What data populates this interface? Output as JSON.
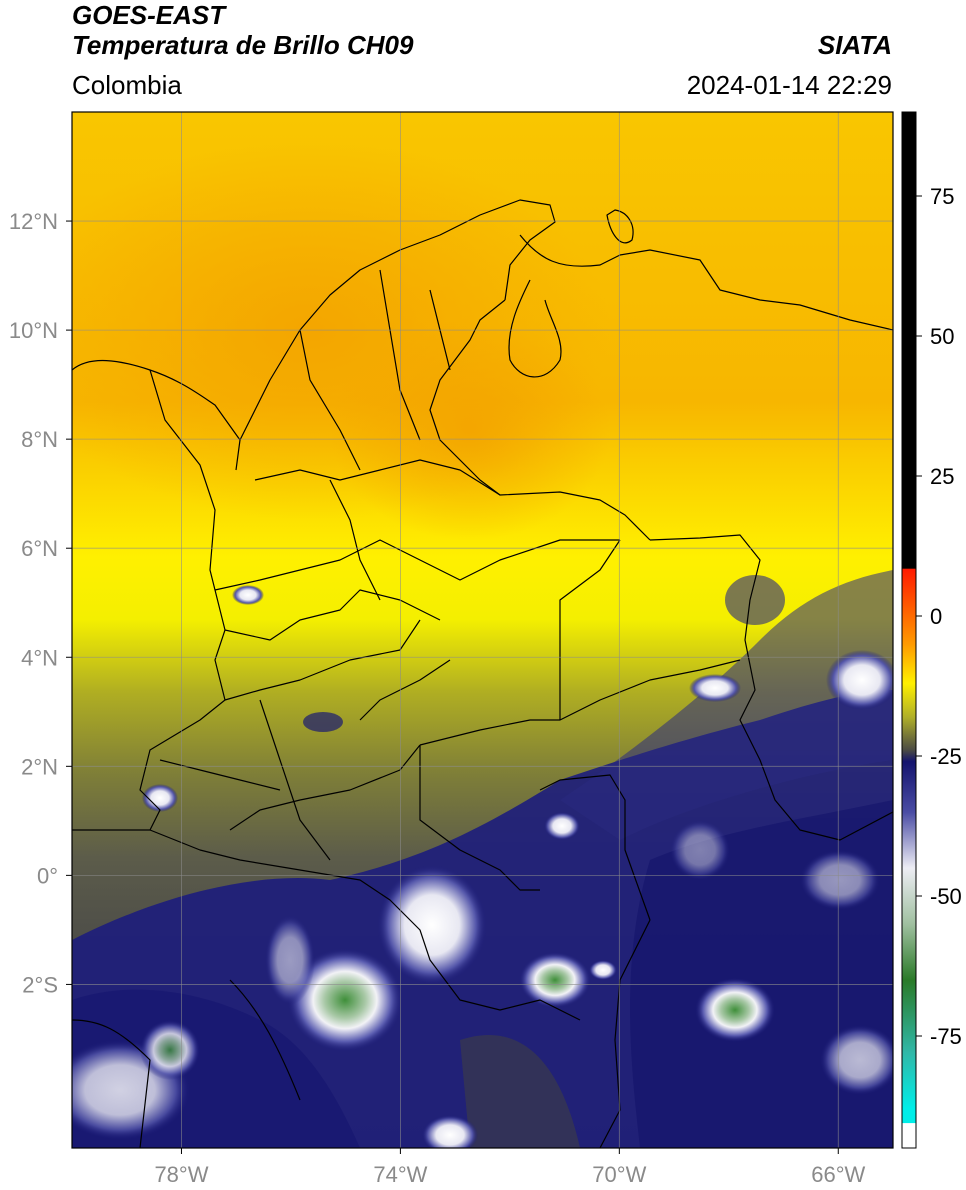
{
  "header": {
    "satellite": "GOES-EAST",
    "product": "Temperatura de Brillo CH09",
    "agency": "SIATA",
    "region": "Colombia",
    "timestamp": "2024-01-14 22:29"
  },
  "map": {
    "lon_range": [
      -80,
      -65
    ],
    "lat_range": [
      -5,
      14
    ],
    "lon_ticks": [
      {
        "value": -78,
        "label": "78°W"
      },
      {
        "value": -74,
        "label": "74°W"
      },
      {
        "value": -70,
        "label": "70°W"
      },
      {
        "value": -66,
        "label": "66°W"
      }
    ],
    "lat_ticks": [
      {
        "value": 12,
        "label": "12°N"
      },
      {
        "value": 10,
        "label": "10°N"
      },
      {
        "value": 8,
        "label": "8°N"
      },
      {
        "value": 6,
        "label": "6°N"
      },
      {
        "value": 4,
        "label": "4°N"
      },
      {
        "value": 2,
        "label": "2°N"
      },
      {
        "value": 0,
        "label": "0°"
      },
      {
        "value": -2,
        "label": "2°S"
      }
    ],
    "grid": true,
    "colors": {
      "warm_orange": "#f9b800",
      "yellow": "#fff200",
      "olive": "#9a9a28",
      "dark_gray": "#4e4e4a",
      "navy": "#1a1a78",
      "white_cloud": "#f2f2f6",
      "green_core": "#3f8f3a"
    }
  },
  "colorbar": {
    "range": [
      -95,
      90
    ],
    "ticks": [
      75,
      50,
      25,
      0,
      -25,
      -50,
      -75
    ],
    "tick_labels": [
      "75",
      "50",
      "25",
      "0",
      "-25",
      "-50",
      "-75"
    ],
    "stops": [
      {
        "value": 90,
        "color": "#000000"
      },
      {
        "value": 8.5,
        "color": "#000000"
      },
      {
        "value": 8.4,
        "color": "#ff1a00"
      },
      {
        "value": -5,
        "color": "#ff9a00"
      },
      {
        "value": -12,
        "color": "#fff000"
      },
      {
        "value": -18,
        "color": "#b0b028"
      },
      {
        "value": -24,
        "color": "#4a4a44"
      },
      {
        "value": -26,
        "color": "#14146e"
      },
      {
        "value": -35,
        "color": "#4a4ca4"
      },
      {
        "value": -45,
        "color": "#ededf4"
      },
      {
        "value": -55,
        "color": "#a0c0a0"
      },
      {
        "value": -65,
        "color": "#2a7a28"
      },
      {
        "value": -78,
        "color": "#30b8a8"
      },
      {
        "value": -88,
        "color": "#00eee8"
      },
      {
        "value": -90.5,
        "color": "#00eee8"
      },
      {
        "value": -90.6,
        "color": "#ffffff"
      },
      {
        "value": -95,
        "color": "#ffffff"
      }
    ]
  }
}
